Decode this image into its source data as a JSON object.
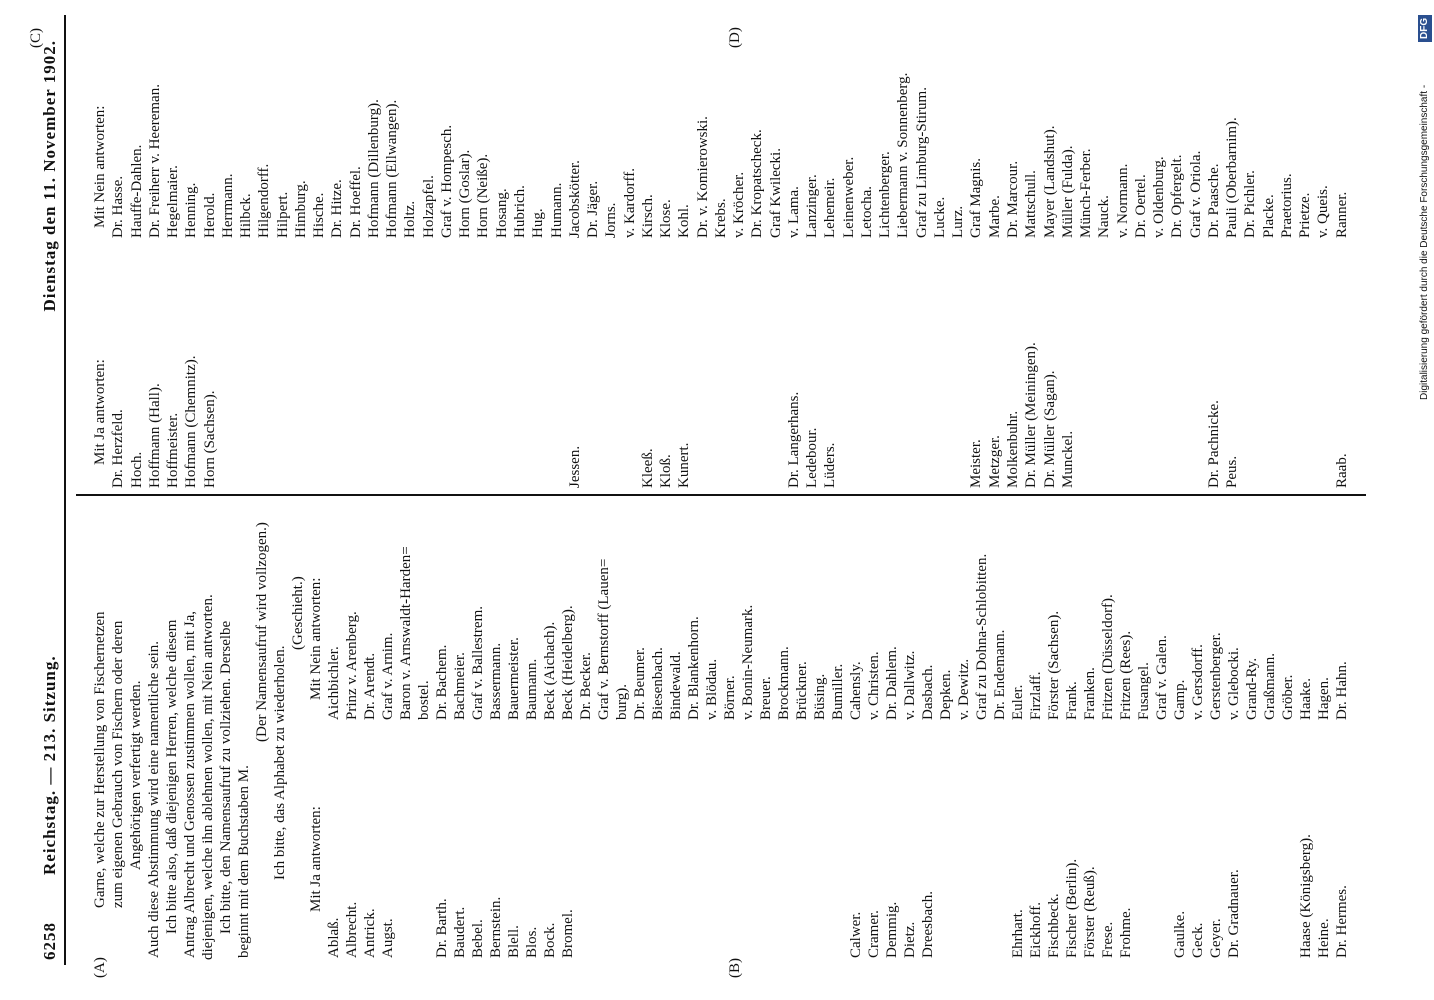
{
  "header": {
    "page_number": "6258",
    "title": "Reichstag. — 213. Sitzung.",
    "date": "Dienstag den 11. November 1902."
  },
  "margin_marks": [
    "(A)",
    "(B)",
    "(C)",
    "(D)"
  ],
  "intro_lines": [
    "Garne, welche zur Herstellung von Fischernetzen",
    "zum eigenen Gebrauch von Fischern oder deren",
    "Angehörigen verfertigt werden.",
    "Auch diese Abstimmung wird eine namentliche sein.",
    "Ich bitte also, daß diejenigen Herren, welche diesem",
    "Antrag Albrecht und Genossen zustimmen wollen, mit Ja,",
    "diejenigen, welche ihn ablehnen wollen, mit Nein antworten.",
    "Ich bitte, den Namensaufruf zu vollziehen. Derselbe",
    "beginnt mit dem Buchstaben M.",
    "(Der Namensaufruf wird vollzogen.)",
    "Ich bitte, das Alphabet zu wiederholen.",
    "(Geschieht.)"
  ],
  "left_column": {
    "yes_heading": "Mit Ja antworten:",
    "no_heading": "Mit Nein antworten:",
    "yes": [
      "Ablaß.",
      "Albrecht.",
      "Antrick.",
      "Augst.",
      "Dr. Barth.",
      "Baudert.",
      "Bebel.",
      "Bernstein.",
      "Blell.",
      "Blos.",
      "Bock.",
      "Bromel.",
      "Calwer.",
      "Cramer.",
      "Demmig.",
      "Dietz.",
      "Dreesbach.",
      "Ehrhart.",
      "Eickhoff.",
      "Fischbeck.",
      "Fischer (Berlin).",
      "Förster (Reuß).",
      "Frese.",
      "Frohme.",
      "Gaulke.",
      "Geck.",
      "Geyer.",
      "Dr. Gradnauer.",
      "Haase (Königsberg).",
      "Heine.",
      "Dr. Hermes."
    ],
    "no": [
      "Aichbichler.",
      "Prinz v. Arenberg.",
      "Dr. Arendt.",
      "Graf v. Arnim.",
      "Baron v. Arnswaldt-Harden=",
      "bostel.",
      "Dr. Bachem.",
      "Bachmeier.",
      "Graf v. Ballestrem.",
      "Bassermann.",
      "Bauermeister.",
      "Baumann.",
      "Beck (Aichach).",
      "Beck (Heidelberg).",
      "Dr. Becker.",
      "Graf v. Bernstorff (Lauen=",
      "burg).",
      "Dr. Beumer.",
      "Biesenbach.",
      "Bindewald.",
      "Dr. Blankenhorn.",
      "v. Blödau.",
      "Börner.",
      "v. Bonin-Neumark.",
      "Breuer.",
      "Brockmann.",
      "Brückner.",
      "Büsing.",
      "Bumiller.",
      "Cahensly.",
      "v. Christen.",
      "Dr. Dahlem.",
      "v. Dallwitz.",
      "Dasbach.",
      "Depken.",
      "v. Dewitz.",
      "Graf zu Dohna-Schlobitten.",
      "Dr. Endemann.",
      "Euler.",
      "Firzlaff.",
      "Förster (Sachsen).",
      "Frank.",
      "Franken.",
      "Fritzen (Düsseldorf).",
      "Fritzen (Rees).",
      "Fusangel.",
      "Graf v. Galen.",
      "Gamp.",
      "v. Gersdorff.",
      "Gerstenberger.",
      "v. Glebocki.",
      "Grand-Ry.",
      "Graßmann.",
      "Gröber.",
      "Haake.",
      "Hagen.",
      "Dr. Hahn."
    ]
  },
  "right_column": {
    "yes_heading": "Mit Ja antworten:",
    "no_heading": "Mit Nein antworten:",
    "yes": [
      "Dr. Herzfeld.",
      "Hoch.",
      "Hoffmann (Hall).",
      "Hoffmeister.",
      "Hofmann (Chemnitz).",
      "Horn (Sachsen).",
      "Jessen.",
      "Kleeß.",
      "Kloß.",
      "Kunert.",
      "Dr. Langerhans.",
      "Ledebour.",
      "Lüders.",
      "Meister.",
      "Metzger.",
      "Molkenbuhr.",
      "Dr. Müller (Meiningen).",
      "Dr. Müller (Sagan).",
      "Munckel.",
      "Dr. Pachnicke.",
      "Peus.",
      "Raab."
    ],
    "no": [
      "Dr. Hasse.",
      "Hauffe-Dahlen.",
      "Dr. Freiherr v. Heereman.",
      "Hegelmaier.",
      "Henning.",
      "Herold.",
      "Herrmann.",
      "Hilbck.",
      "Hilgendorff.",
      "Hilpert.",
      "Himburg.",
      "Hische.",
      "Dr. Hitze.",
      "Dr. Hoeffel.",
      "Hofmann (Dillenburg).",
      "Hofmann (Ellwangen).",
      "Holtz.",
      "Holzapfel.",
      "Graf v. Hompesch.",
      "Horn (Goslar).",
      "Horn (Neiße).",
      "Hosang.",
      "Hubrich.",
      "Hug.",
      "Humann.",
      "Jacobskötter.",
      "Dr. Jäger.",
      "Jorns.",
      "v. Kardorff.",
      "Kirsch.",
      "Klose.",
      "Kohl.",
      "Dr. v. Komierowski.",
      "Krebs.",
      "v. Kröcher.",
      "Dr. Kropatscheck.",
      "Graf Kwilecki.",
      "v. Lama.",
      "Lanzinger.",
      "Lehemeir.",
      "Leinenweber.",
      "Letocha.",
      "Lichtenberger.",
      "Liebermann v. Sonnenberg.",
      "Graf zu Limburg-Stirum.",
      "Lucke.",
      "Lurz.",
      "Graf Magnis.",
      "Marbe.",
      "Dr. Marcour.",
      "Mattschull.",
      "Mayer (Landshut).",
      "Müller (Fulda).",
      "Münch-Ferber.",
      "Nauck.",
      "v. Normann.",
      "Dr. Oertel.",
      "v. Oldenburg.",
      "Dr. Opfergelt.",
      "Graf v. Oriola.",
      "Dr. Paasche.",
      "Pauli (Oberbarnim).",
      "Dr. Pichler.",
      "Placke.",
      "Praetorius.",
      "Prietze.",
      "v. Queis.",
      "Ranner."
    ]
  },
  "footer_note": "Digitalisierung gefördert durch die Deutsche Forschungsgemeinschaft -",
  "footer_logo": "DFG"
}
